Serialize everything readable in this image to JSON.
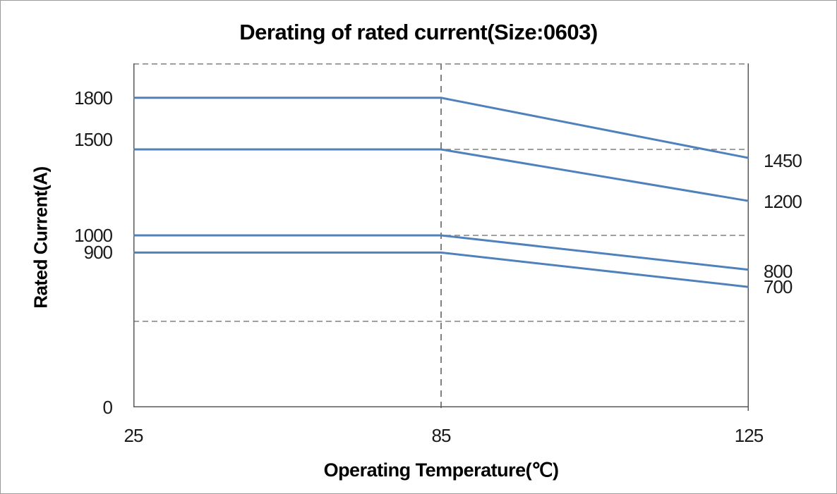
{
  "window": {
    "background": "#ffffff",
    "border_color": "#9b9b9b"
  },
  "chart_data": {
    "type": "line",
    "title": "Derating of rated current(Size:0603)",
    "xlabel": "Operating Temperature(℃)",
    "ylabel": "Rated Current(A)",
    "x": [
      25,
      85,
      125
    ],
    "x_axis_type": "category",
    "x_tick_labels": [
      "25",
      "85",
      "125"
    ],
    "ylim": [
      0,
      2000
    ],
    "series": [
      {
        "values": [
          1800,
          1800,
          1450
        ]
      },
      {
        "values": [
          1500,
          1500,
          1200
        ]
      },
      {
        "values": [
          1000,
          1000,
          800
        ]
      },
      {
        "values": [
          900,
          900,
          700
        ]
      }
    ],
    "y_axis_labels": [
      {
        "text": "1800",
        "value": 1800
      },
      {
        "text": "1500",
        "value": 1500
      },
      {
        "text": "1000",
        "value": 1000
      },
      {
        "text": "900",
        "value": 900
      },
      {
        "text": "0",
        "value": 0
      }
    ],
    "right_end_labels": [
      {
        "text": "1450",
        "value": 1450
      },
      {
        "text": "1200",
        "value": 1200
      },
      {
        "text": "800",
        "value": 800
      },
      {
        "text": "700",
        "value": 700
      }
    ],
    "gridlines": {
      "horizontal_dashed": [
        2000,
        1500,
        1000,
        500
      ],
      "vertical_dashed_x": 85,
      "color": "#808080"
    },
    "line_color": "#4f81bd",
    "axis_color": "#595959",
    "legend": "none"
  }
}
